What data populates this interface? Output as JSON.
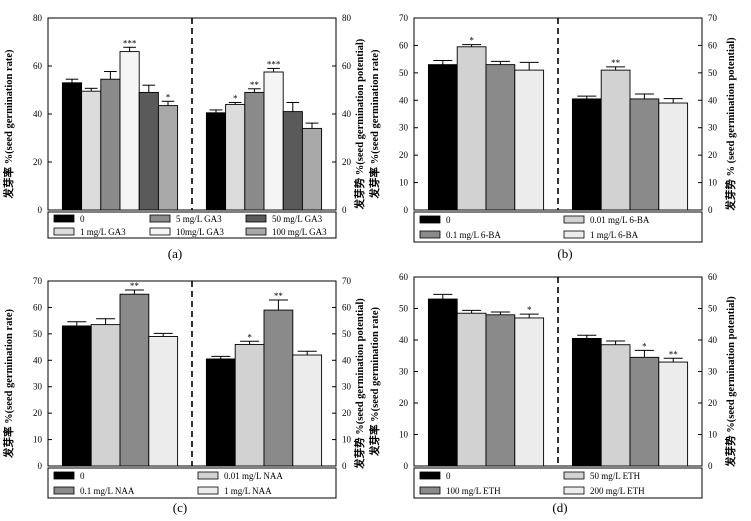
{
  "figure": {
    "panels": [
      "a",
      "b",
      "c",
      "d"
    ]
  },
  "chart_data": [
    {
      "type": "bar",
      "panel_label": "(a)",
      "title": "",
      "ylabel_left": "发芽率 %(seed germination rate)",
      "ylabel_right": "发芽势 %(seed germination potential)",
      "ylim": [
        0,
        80
      ],
      "yticks": [
        0,
        20,
        40,
        60,
        80
      ],
      "yticks_right": [
        0,
        20,
        40,
        60,
        80
      ],
      "treatments": [
        "0",
        "1 mg/L GA3",
        "5 mg/L GA3",
        "10mg/L GA3",
        "50 mg/L GA3",
        "100 mg/L GA3"
      ],
      "bar_order": [
        "0",
        "1 mg/L GA3",
        "5 mg/L GA3",
        "10mg/L GA3",
        "50 mg/L GA3",
        "100 mg/L GA3"
      ],
      "colors": [
        "#000000",
        "#dcdcdc",
        "#8a8a8a",
        "#f5f5f5",
        "#5a5a5a",
        "#a8a8a8"
      ],
      "legend": {
        "columns": 3,
        "order": [
          "0",
          "1 mg/L GA3",
          "5 mg/L GA3",
          "10mg/L GA3",
          "50 mg/L GA3",
          "100 mg/L GA3"
        ]
      },
      "series": [
        {
          "name": "germination rate",
          "values": [
            53,
            49.5,
            54.5,
            66,
            49,
            43.5
          ],
          "errors": [
            1.5,
            1.2,
            3.2,
            1.8,
            3.0,
            1.8
          ],
          "sig": [
            "",
            "",
            "",
            "***",
            "",
            "*"
          ]
        },
        {
          "name": "germination potential",
          "values": [
            40.5,
            44,
            49,
            57.5,
            41,
            34
          ],
          "errors": [
            1.2,
            0.8,
            1.5,
            1.5,
            3.8,
            2.2
          ],
          "sig": [
            "",
            "*",
            "**",
            "***",
            "",
            ""
          ]
        }
      ]
    },
    {
      "type": "bar",
      "panel_label": "(b)",
      "title": "",
      "ylabel_left": "发芽率 %(seed germination rate)",
      "ylabel_right": "发芽势 % (seed germination potential)",
      "ylim": [
        0,
        70
      ],
      "yticks": [
        0,
        10,
        20,
        30,
        40,
        50,
        60,
        70
      ],
      "yticks_right": [
        0,
        10,
        20,
        30,
        40,
        50,
        60,
        70
      ],
      "treatments": [
        "0",
        "0.01 mg/L 6-BA",
        "0.1 mg/L 6-BA",
        "1 mg/L 6-BA"
      ],
      "bar_order": [
        "0",
        "0.01 mg/L 6-BA",
        "0.1 mg/L 6-BA",
        "1 mg/L 6-BA"
      ],
      "colors": [
        "#000000",
        "#d2d2d2",
        "#8a8a8a",
        "#ececec"
      ],
      "legend": {
        "columns": 2,
        "order": [
          "0",
          "0.1 mg/L 6-BA",
          "0.01 mg/L 6-BA",
          "1 mg/L 6-BA"
        ]
      },
      "series": [
        {
          "name": "germination rate",
          "values": [
            53,
            59.5,
            53,
            51
          ],
          "errors": [
            1.5,
            0.8,
            1.2,
            2.8
          ],
          "sig": [
            "",
            "*",
            "",
            ""
          ]
        },
        {
          "name": "germination potential",
          "values": [
            40.5,
            51,
            40.5,
            39
          ],
          "errors": [
            1.0,
            1.2,
            1.8,
            1.6
          ],
          "sig": [
            "",
            "**",
            "",
            ""
          ]
        }
      ]
    },
    {
      "type": "bar",
      "panel_label": "(c)",
      "title": "",
      "ylabel_left": "发芽率 %(seed germination rate)",
      "ylabel_right": "发芽势 %(seed germination potential)",
      "ylim": [
        0,
        70
      ],
      "yticks": [
        0,
        10,
        20,
        30,
        40,
        50,
        60,
        70
      ],
      "yticks_right": [
        0,
        10,
        20,
        30,
        40,
        50,
        60,
        70
      ],
      "treatments": [
        "0",
        "0.01 mg/L NAA",
        "0.1 mg/L NAA",
        "1 mg/L NAA"
      ],
      "bar_order": [
        "0",
        "0.01 mg/L NAA",
        "0.1 mg/L NAA",
        "1 mg/L NAA"
      ],
      "colors": [
        "#000000",
        "#d2d2d2",
        "#8a8a8a",
        "#ececec"
      ],
      "legend": {
        "columns": 2,
        "order": [
          "0",
          "0.1 mg/L NAA",
          "0.01 mg/L NAA",
          "1 mg/L NAA"
        ]
      },
      "series": [
        {
          "name": "germination rate",
          "values": [
            53,
            53.5,
            65,
            49
          ],
          "errors": [
            1.6,
            2.2,
            1.6,
            1.2
          ],
          "sig": [
            "",
            "",
            "**",
            ""
          ]
        },
        {
          "name": "germination potential",
          "values": [
            40.5,
            46,
            59,
            42
          ],
          "errors": [
            1.0,
            1.2,
            3.8,
            1.4
          ],
          "sig": [
            "",
            "*",
            "**",
            ""
          ]
        }
      ]
    },
    {
      "type": "bar",
      "panel_label": "(d)",
      "title": "",
      "ylabel_left": "发芽率 %(seed germination rate)",
      "ylabel_right": "发芽势 %(seed germination potential)",
      "ylim": [
        0,
        60
      ],
      "yticks": [
        0,
        10,
        20,
        30,
        40,
        50,
        60
      ],
      "yticks_right": [
        0,
        10,
        20,
        30,
        40,
        50,
        60
      ],
      "treatments": [
        "0",
        "50 mg/L ETH",
        "100 mg/L ETH",
        "200 mg/L ETH"
      ],
      "bar_order": [
        "0",
        "50 mg/L ETH",
        "100 mg/L ETH",
        "200 mg/L ETH"
      ],
      "colors": [
        "#000000",
        "#d2d2d2",
        "#8a8a8a",
        "#ececec"
      ],
      "legend": {
        "columns": 2,
        "order": [
          "0",
          "100 mg/L ETH",
          "50 mg/L ETH",
          "200 mg/L ETH"
        ]
      },
      "series": [
        {
          "name": "germination rate",
          "values": [
            53,
            48.5,
            48,
            47
          ],
          "errors": [
            1.5,
            0.9,
            0.9,
            1.2
          ],
          "sig": [
            "",
            "",
            "",
            "*"
          ]
        },
        {
          "name": "germination potential",
          "values": [
            40.5,
            38.5,
            34.5,
            33
          ],
          "errors": [
            1.0,
            1.2,
            2.2,
            1.2
          ],
          "sig": [
            "",
            "",
            "*",
            "**"
          ]
        }
      ]
    }
  ]
}
